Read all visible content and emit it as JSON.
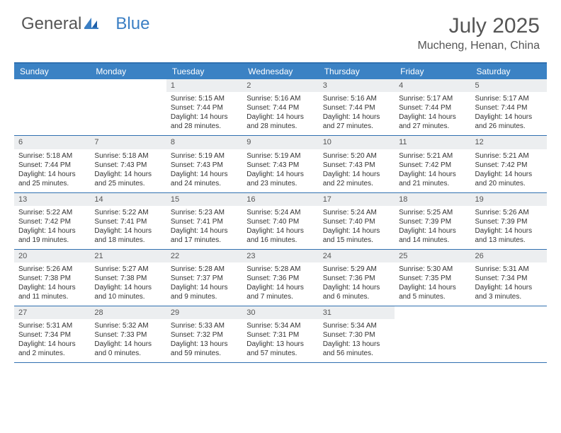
{
  "logo": {
    "word1": "General",
    "word2": "Blue"
  },
  "title": "July 2025",
  "location": "Mucheng, Henan, China",
  "colors": {
    "header_bg": "#3b82c4",
    "header_rule": "#3070b0",
    "daynum_bg": "#eceef0",
    "text": "#333333",
    "title_text": "#555555",
    "white": "#ffffff"
  },
  "daysOfWeek": [
    "Sunday",
    "Monday",
    "Tuesday",
    "Wednesday",
    "Thursday",
    "Friday",
    "Saturday"
  ],
  "calendar": {
    "startDayIndex": 2,
    "days": [
      {
        "n": 1,
        "sunrise": "5:15 AM",
        "sunset": "7:44 PM",
        "daylight": "14 hours and 28 minutes."
      },
      {
        "n": 2,
        "sunrise": "5:16 AM",
        "sunset": "7:44 PM",
        "daylight": "14 hours and 28 minutes."
      },
      {
        "n": 3,
        "sunrise": "5:16 AM",
        "sunset": "7:44 PM",
        "daylight": "14 hours and 27 minutes."
      },
      {
        "n": 4,
        "sunrise": "5:17 AM",
        "sunset": "7:44 PM",
        "daylight": "14 hours and 27 minutes."
      },
      {
        "n": 5,
        "sunrise": "5:17 AM",
        "sunset": "7:44 PM",
        "daylight": "14 hours and 26 minutes."
      },
      {
        "n": 6,
        "sunrise": "5:18 AM",
        "sunset": "7:44 PM",
        "daylight": "14 hours and 25 minutes."
      },
      {
        "n": 7,
        "sunrise": "5:18 AM",
        "sunset": "7:43 PM",
        "daylight": "14 hours and 25 minutes."
      },
      {
        "n": 8,
        "sunrise": "5:19 AM",
        "sunset": "7:43 PM",
        "daylight": "14 hours and 24 minutes."
      },
      {
        "n": 9,
        "sunrise": "5:19 AM",
        "sunset": "7:43 PM",
        "daylight": "14 hours and 23 minutes."
      },
      {
        "n": 10,
        "sunrise": "5:20 AM",
        "sunset": "7:43 PM",
        "daylight": "14 hours and 22 minutes."
      },
      {
        "n": 11,
        "sunrise": "5:21 AM",
        "sunset": "7:42 PM",
        "daylight": "14 hours and 21 minutes."
      },
      {
        "n": 12,
        "sunrise": "5:21 AM",
        "sunset": "7:42 PM",
        "daylight": "14 hours and 20 minutes."
      },
      {
        "n": 13,
        "sunrise": "5:22 AM",
        "sunset": "7:42 PM",
        "daylight": "14 hours and 19 minutes."
      },
      {
        "n": 14,
        "sunrise": "5:22 AM",
        "sunset": "7:41 PM",
        "daylight": "14 hours and 18 minutes."
      },
      {
        "n": 15,
        "sunrise": "5:23 AM",
        "sunset": "7:41 PM",
        "daylight": "14 hours and 17 minutes."
      },
      {
        "n": 16,
        "sunrise": "5:24 AM",
        "sunset": "7:40 PM",
        "daylight": "14 hours and 16 minutes."
      },
      {
        "n": 17,
        "sunrise": "5:24 AM",
        "sunset": "7:40 PM",
        "daylight": "14 hours and 15 minutes."
      },
      {
        "n": 18,
        "sunrise": "5:25 AM",
        "sunset": "7:39 PM",
        "daylight": "14 hours and 14 minutes."
      },
      {
        "n": 19,
        "sunrise": "5:26 AM",
        "sunset": "7:39 PM",
        "daylight": "14 hours and 13 minutes."
      },
      {
        "n": 20,
        "sunrise": "5:26 AM",
        "sunset": "7:38 PM",
        "daylight": "14 hours and 11 minutes."
      },
      {
        "n": 21,
        "sunrise": "5:27 AM",
        "sunset": "7:38 PM",
        "daylight": "14 hours and 10 minutes."
      },
      {
        "n": 22,
        "sunrise": "5:28 AM",
        "sunset": "7:37 PM",
        "daylight": "14 hours and 9 minutes."
      },
      {
        "n": 23,
        "sunrise": "5:28 AM",
        "sunset": "7:36 PM",
        "daylight": "14 hours and 7 minutes."
      },
      {
        "n": 24,
        "sunrise": "5:29 AM",
        "sunset": "7:36 PM",
        "daylight": "14 hours and 6 minutes."
      },
      {
        "n": 25,
        "sunrise": "5:30 AM",
        "sunset": "7:35 PM",
        "daylight": "14 hours and 5 minutes."
      },
      {
        "n": 26,
        "sunrise": "5:31 AM",
        "sunset": "7:34 PM",
        "daylight": "14 hours and 3 minutes."
      },
      {
        "n": 27,
        "sunrise": "5:31 AM",
        "sunset": "7:34 PM",
        "daylight": "14 hours and 2 minutes."
      },
      {
        "n": 28,
        "sunrise": "5:32 AM",
        "sunset": "7:33 PM",
        "daylight": "14 hours and 0 minutes."
      },
      {
        "n": 29,
        "sunrise": "5:33 AM",
        "sunset": "7:32 PM",
        "daylight": "13 hours and 59 minutes."
      },
      {
        "n": 30,
        "sunrise": "5:34 AM",
        "sunset": "7:31 PM",
        "daylight": "13 hours and 57 minutes."
      },
      {
        "n": 31,
        "sunrise": "5:34 AM",
        "sunset": "7:30 PM",
        "daylight": "13 hours and 56 minutes."
      }
    ]
  },
  "labels": {
    "sunrise": "Sunrise:",
    "sunset": "Sunset:",
    "daylight": "Daylight:"
  }
}
